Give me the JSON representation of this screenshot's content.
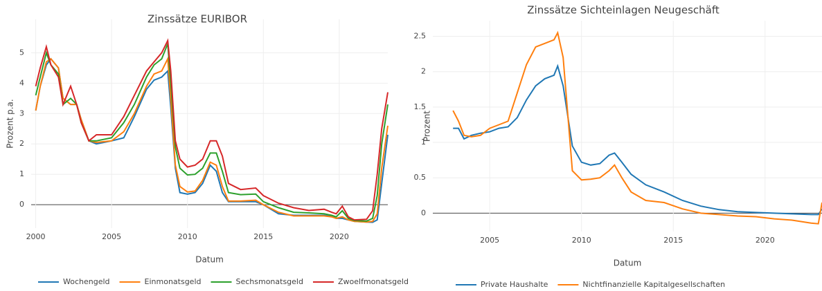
{
  "chart_data": [
    {
      "type": "line",
      "title": "Zinssätze EURIBOR",
      "x_label": "Datum",
      "y_label": "Prozent p.a.",
      "x": [
        2000,
        2000.3,
        2000.7,
        2001,
        2001.5,
        2001.8,
        2002.3,
        2002.7,
        2003,
        2003.5,
        2004,
        2005,
        2005.8,
        2006.5,
        2007.3,
        2007.8,
        2008.3,
        2008.7,
        2008.9,
        2009.2,
        2009.5,
        2010,
        2010.5,
        2011,
        2011.5,
        2011.9,
        2012.3,
        2012.7,
        2013.5,
        2014.5,
        2015,
        2016,
        2017,
        2018,
        2019,
        2019.5,
        2019.8,
        2020.2,
        2020.6,
        2021,
        2021.8,
        2022.2,
        2022.5,
        2022.8,
        2023.2
      ],
      "series": [
        {
          "name": "Wochengeld",
          "color": "#1f77b4",
          "values": [
            3.1,
            3.9,
            4.6,
            4.8,
            4.5,
            3.5,
            3.3,
            3.3,
            2.8,
            2.1,
            2.0,
            2.1,
            2.2,
            2.9,
            3.8,
            4.1,
            4.2,
            4.4,
            3.2,
            1.2,
            0.4,
            0.35,
            0.4,
            0.7,
            1.3,
            1.1,
            0.4,
            0.1,
            0.1,
            0.1,
            0,
            -0.3,
            -0.35,
            -0.35,
            -0.35,
            -0.38,
            -0.45,
            -0.45,
            -0.5,
            -0.55,
            -0.57,
            -0.58,
            -0.5,
            0.7,
            2.3
          ]
        },
        {
          "name": "Einmonatsgeld",
          "color": "#ff7f0e",
          "values": [
            3.1,
            3.9,
            4.7,
            4.8,
            4.5,
            3.5,
            3.3,
            3.3,
            2.8,
            2.1,
            2.05,
            2.1,
            2.4,
            3.0,
            3.9,
            4.3,
            4.4,
            4.8,
            3.5,
            1.3,
            0.6,
            0.42,
            0.45,
            0.8,
            1.4,
            1.3,
            0.6,
            0.12,
            0.12,
            0.15,
            0,
            -0.25,
            -0.37,
            -0.37,
            -0.37,
            -0.4,
            -0.45,
            -0.4,
            -0.5,
            -0.55,
            -0.57,
            -0.55,
            -0.3,
            1.2,
            2.6
          ]
        },
        {
          "name": "Sechsmonatsgeld",
          "color": "#2ca02c",
          "values": [
            3.6,
            4.2,
            5.0,
            4.6,
            4.3,
            3.3,
            3.5,
            3.3,
            2.7,
            2.1,
            2.1,
            2.2,
            2.7,
            3.3,
            4.2,
            4.6,
            4.8,
            5.3,
            4.0,
            1.9,
            1.2,
            0.98,
            1.0,
            1.2,
            1.7,
            1.7,
            1.1,
            0.4,
            0.33,
            0.35,
            0.1,
            -0.1,
            -0.25,
            -0.27,
            -0.3,
            -0.35,
            -0.4,
            -0.2,
            -0.45,
            -0.52,
            -0.54,
            -0.45,
            0.3,
            2.0,
            3.3
          ]
        },
        {
          "name": "Zwoelfmonatsgeld",
          "color": "#d62728",
          "values": [
            3.9,
            4.5,
            5.2,
            4.6,
            4.2,
            3.3,
            3.9,
            3.3,
            2.7,
            2.1,
            2.3,
            2.3,
            2.9,
            3.6,
            4.4,
            4.7,
            5.0,
            5.4,
            4.4,
            2.1,
            1.5,
            1.24,
            1.3,
            1.5,
            2.1,
            2.1,
            1.6,
            0.7,
            0.5,
            0.55,
            0.3,
            0.05,
            -0.1,
            -0.19,
            -0.15,
            -0.25,
            -0.3,
            -0.05,
            -0.4,
            -0.5,
            -0.48,
            -0.2,
            1.0,
            2.5,
            3.7
          ]
        }
      ],
      "xlim": [
        1999.7,
        2023.2
      ],
      "xticks": [
        2000,
        2005,
        2010,
        2015,
        2020
      ],
      "ylim": [
        -0.77,
        6.1
      ],
      "yticks": [
        0,
        1,
        2,
        3,
        4,
        5
      ],
      "grid": true
    },
    {
      "type": "line",
      "title": "Zinssätze Sichteinlagen Neugeschäft",
      "x_label": "Datum",
      "y_label": "Prozent",
      "x": [
        2003,
        2003.3,
        2003.6,
        2004,
        2004.5,
        2005,
        2005.5,
        2006,
        2006.5,
        2007,
        2007.5,
        2008,
        2008.5,
        2008.7,
        2009,
        2009.5,
        2010,
        2010.5,
        2011,
        2011.5,
        2011.8,
        2012.2,
        2012.7,
        2013.5,
        2014.5,
        2015.5,
        2016.5,
        2017.5,
        2018.5,
        2019.5,
        2020.5,
        2021.5,
        2022.5,
        2022.9,
        2023.1
      ],
      "series": [
        {
          "name": "Private Haushalte",
          "color": "#1f77b4",
          "values": [
            1.2,
            1.2,
            1.05,
            1.1,
            1.13,
            1.15,
            1.2,
            1.22,
            1.35,
            1.6,
            1.8,
            1.9,
            1.95,
            2.08,
            1.8,
            0.95,
            0.72,
            0.68,
            0.7,
            0.82,
            0.85,
            0.72,
            0.55,
            0.4,
            0.3,
            0.18,
            0.1,
            0.05,
            0.02,
            0.01,
            0.0,
            -0.01,
            -0.02,
            -0.02,
            0.06
          ]
        },
        {
          "name": "Nichtfinanzielle Kapitalgesellschaften",
          "color": "#ff7f0e",
          "values": [
            1.45,
            1.3,
            1.1,
            1.08,
            1.1,
            1.2,
            1.25,
            1.3,
            1.7,
            2.1,
            2.35,
            2.4,
            2.45,
            2.55,
            2.2,
            0.6,
            0.47,
            0.48,
            0.5,
            0.6,
            0.68,
            0.5,
            0.3,
            0.18,
            0.15,
            0.06,
            0.0,
            -0.02,
            -0.04,
            -0.05,
            -0.08,
            -0.1,
            -0.14,
            -0.15,
            0.15
          ]
        }
      ],
      "xlim": [
        2001.9,
        2023.1
      ],
      "xticks": [
        2005,
        2010,
        2015,
        2020
      ],
      "ylim": [
        -0.26,
        2.72
      ],
      "yticks": [
        0,
        0.5,
        1,
        1.5,
        2,
        2.5
      ],
      "grid": true
    }
  ]
}
